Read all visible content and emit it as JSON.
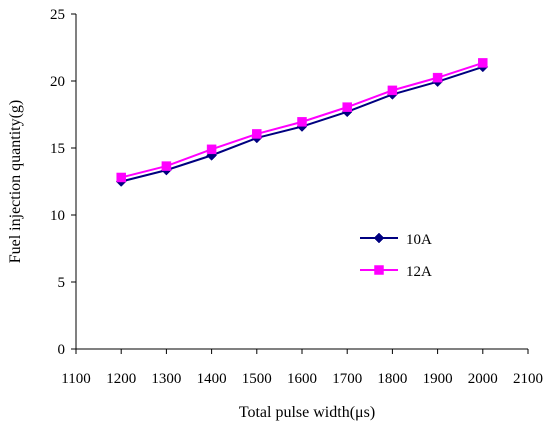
{
  "chart_data": {
    "type": "line",
    "title": "",
    "xlabel": "Total pulse width(μs)",
    "ylabel": "Fuel injection quantity(g)",
    "xlim": [
      1100,
      2100
    ],
    "ylim": [
      0,
      25
    ],
    "xticks": [
      1100,
      1200,
      1300,
      1400,
      1500,
      1600,
      1700,
      1800,
      1900,
      2000,
      2100
    ],
    "yticks": [
      0,
      5,
      10,
      15,
      20,
      25
    ],
    "grid": false,
    "legend_position": "right-center",
    "x": [
      1200,
      1300,
      1400,
      1500,
      1600,
      1700,
      1800,
      1900,
      2000
    ],
    "series": [
      {
        "name": "10A",
        "color": "#000080",
        "marker": "diamond",
        "values": [
          12.5,
          13.35,
          14.45,
          15.75,
          16.6,
          17.7,
          19.0,
          19.95,
          21.05
        ]
      },
      {
        "name": "12A",
        "color": "#ff00ff",
        "marker": "square",
        "values": [
          12.8,
          13.65,
          14.9,
          16.05,
          16.95,
          18.05,
          19.3,
          20.25,
          21.35
        ]
      }
    ]
  }
}
